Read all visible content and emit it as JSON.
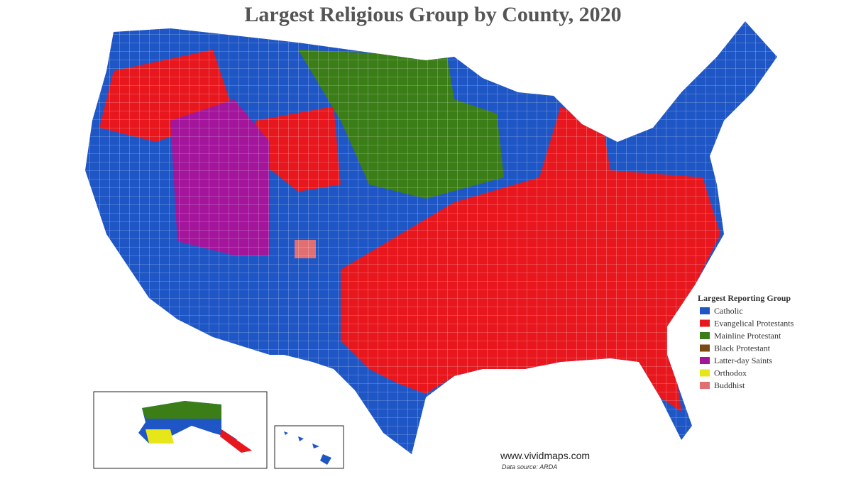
{
  "title": "Largest Religious Group by County, 2020",
  "legend": {
    "title": "Largest Reporting Group",
    "items": [
      {
        "label": "Catholic",
        "color": "#1f56c6"
      },
      {
        "label": "Evangelical Protestants",
        "color": "#e8171e"
      },
      {
        "label": "Mainline Protestant",
        "color": "#3b7d17"
      },
      {
        "label": "Black Protestant",
        "color": "#7a4a12"
      },
      {
        "label": "Latter-day Saints",
        "color": "#a3159b"
      },
      {
        "label": "Orthodox",
        "color": "#e6e619"
      },
      {
        "label": "Buddhist",
        "color": "#df6f72"
      }
    ]
  },
  "credit": "www.vividmaps.com",
  "source": "Data source: ARDA"
}
